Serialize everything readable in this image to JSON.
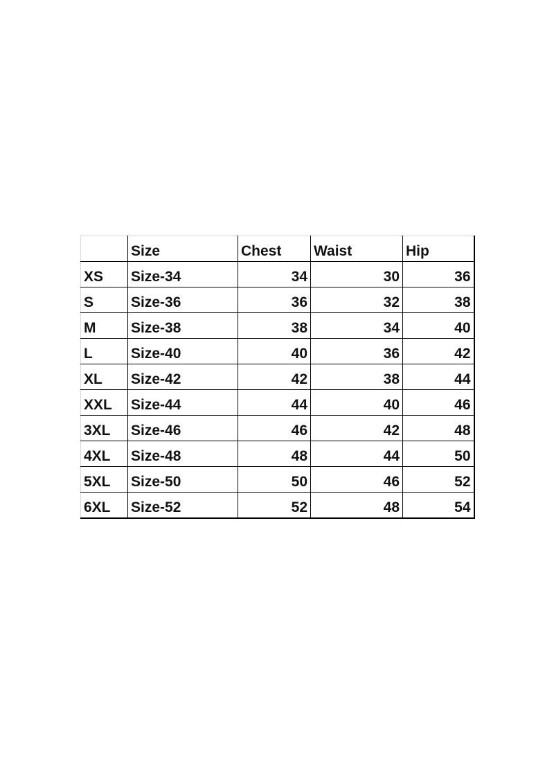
{
  "table": {
    "headers": [
      "",
      "Size",
      "Chest",
      "Waist",
      "Hip"
    ],
    "rows": [
      [
        "XS",
        "Size-34",
        "34",
        "30",
        "36"
      ],
      [
        "S",
        "Size-36",
        "36",
        "32",
        "38"
      ],
      [
        "M",
        "Size-38",
        "38",
        "34",
        "40"
      ],
      [
        "L",
        "Size-40",
        "40",
        "36",
        "42"
      ],
      [
        "XL",
        "Size-42",
        "42",
        "38",
        "44"
      ],
      [
        "XXL",
        "Size-44",
        "44",
        "40",
        "46"
      ],
      [
        "3XL",
        "Size-46",
        "46",
        "42",
        "48"
      ],
      [
        "4XL",
        "Size-48",
        "48",
        "44",
        "50"
      ],
      [
        "5XL",
        "Size-50",
        "50",
        "46",
        "52"
      ],
      [
        "6XL",
        "Size-52",
        "52",
        "48",
        "54"
      ]
    ]
  }
}
